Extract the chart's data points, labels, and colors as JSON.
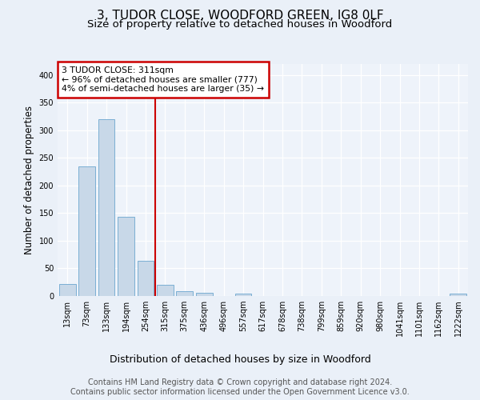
{
  "title": "3, TUDOR CLOSE, WOODFORD GREEN, IG8 0LF",
  "subtitle": "Size of property relative to detached houses in Woodford",
  "xlabel": "Distribution of detached houses by size in Woodford",
  "ylabel": "Number of detached properties",
  "bar_labels": [
    "13sqm",
    "73sqm",
    "133sqm",
    "194sqm",
    "254sqm",
    "315sqm",
    "375sqm",
    "436sqm",
    "496sqm",
    "557sqm",
    "617sqm",
    "678sqm",
    "738sqm",
    "799sqm",
    "859sqm",
    "920sqm",
    "980sqm",
    "1041sqm",
    "1101sqm",
    "1162sqm",
    "1222sqm"
  ],
  "bar_values": [
    22,
    235,
    320,
    144,
    64,
    20,
    9,
    6,
    0,
    5,
    0,
    0,
    0,
    0,
    0,
    0,
    0,
    0,
    0,
    0,
    4
  ],
  "bar_color": "#c8d8e8",
  "bar_edge_color": "#7bafd4",
  "annotation_text": "3 TUDOR CLOSE: 311sqm\n← 96% of detached houses are smaller (777)\n4% of semi-detached houses are larger (35) →",
  "annotation_box_color": "#ffffff",
  "annotation_box_edge": "#cc0000",
  "line_color": "#cc0000",
  "line_index": 5,
  "ylim": [
    0,
    420
  ],
  "yticks": [
    0,
    50,
    100,
    150,
    200,
    250,
    300,
    350,
    400
  ],
  "bg_color": "#eaf0f8",
  "plot_bg_color": "#eef3fa",
  "footer": "Contains HM Land Registry data © Crown copyright and database right 2024.\nContains public sector information licensed under the Open Government Licence v3.0.",
  "title_fontsize": 11,
  "subtitle_fontsize": 9.5,
  "xlabel_fontsize": 9,
  "ylabel_fontsize": 8.5,
  "footer_fontsize": 7,
  "tick_fontsize": 7
}
